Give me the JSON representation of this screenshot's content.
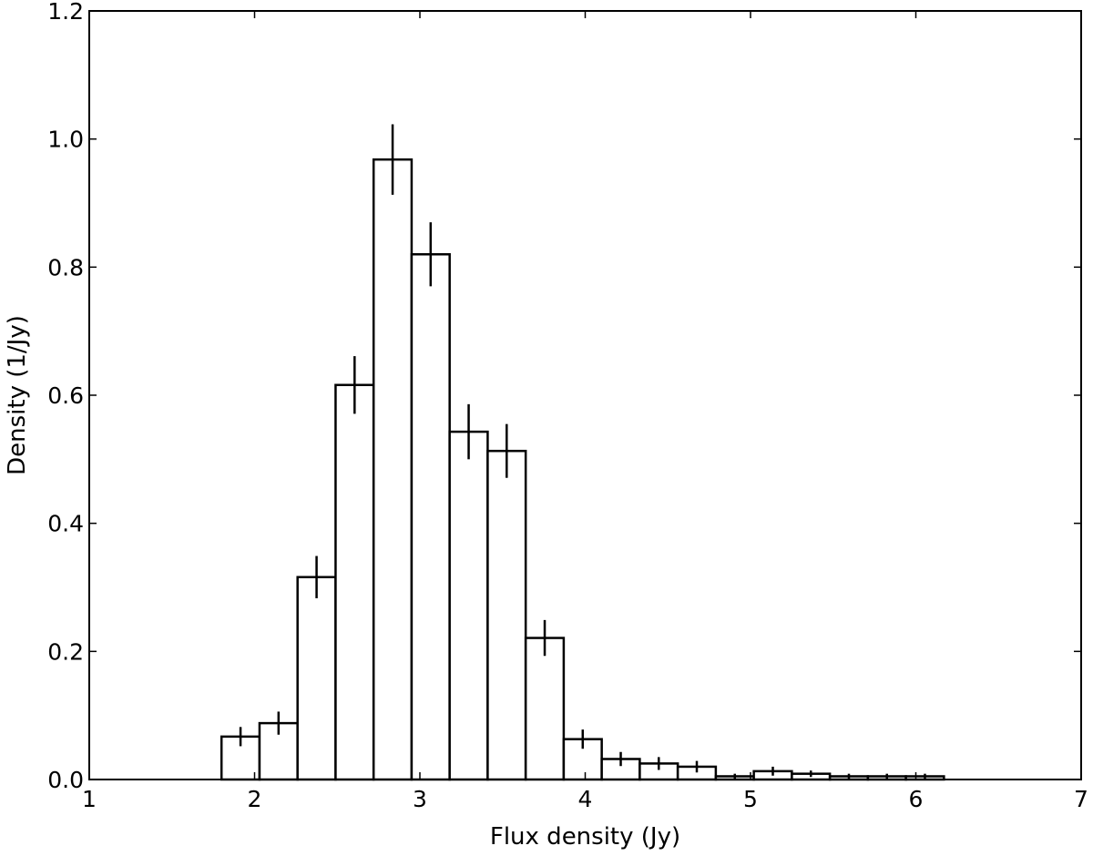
{
  "chart_data": {
    "type": "bar",
    "xlabel": "Flux density (Jy)",
    "ylabel": "Density (1/Jy)",
    "xlim": [
      1,
      7
    ],
    "ylim": [
      0,
      1.2
    ],
    "xticks": [
      "1",
      "2",
      "3",
      "4",
      "5",
      "6",
      "7"
    ],
    "yticks": [
      "0.0",
      "0.2",
      "0.4",
      "0.6",
      "0.8",
      "1.0",
      "1.2"
    ],
    "bin_edges": [
      1.8,
      2.03,
      2.26,
      2.49,
      2.72,
      2.95,
      3.18,
      3.41,
      3.64,
      3.87,
      4.1,
      4.33,
      4.56,
      4.79,
      5.02,
      5.25,
      5.48,
      5.71,
      5.94,
      6.17
    ],
    "values": [
      0.067,
      0.088,
      0.316,
      0.616,
      0.968,
      0.82,
      0.543,
      0.513,
      0.221,
      0.063,
      0.032,
      0.025,
      0.02,
      0.005,
      0.013,
      0.009,
      0.005,
      0.005,
      0.005
    ],
    "errors": [
      0.015,
      0.018,
      0.033,
      0.045,
      0.055,
      0.05,
      0.043,
      0.042,
      0.028,
      0.015,
      0.011,
      0.01,
      0.009,
      0.004,
      0.007,
      0.005,
      0.004,
      0.004,
      0.004
    ],
    "grid": false,
    "colors": {
      "bar_fill": "#ffffff",
      "bar_edge": "#000000",
      "errorbar": "#000000"
    }
  }
}
